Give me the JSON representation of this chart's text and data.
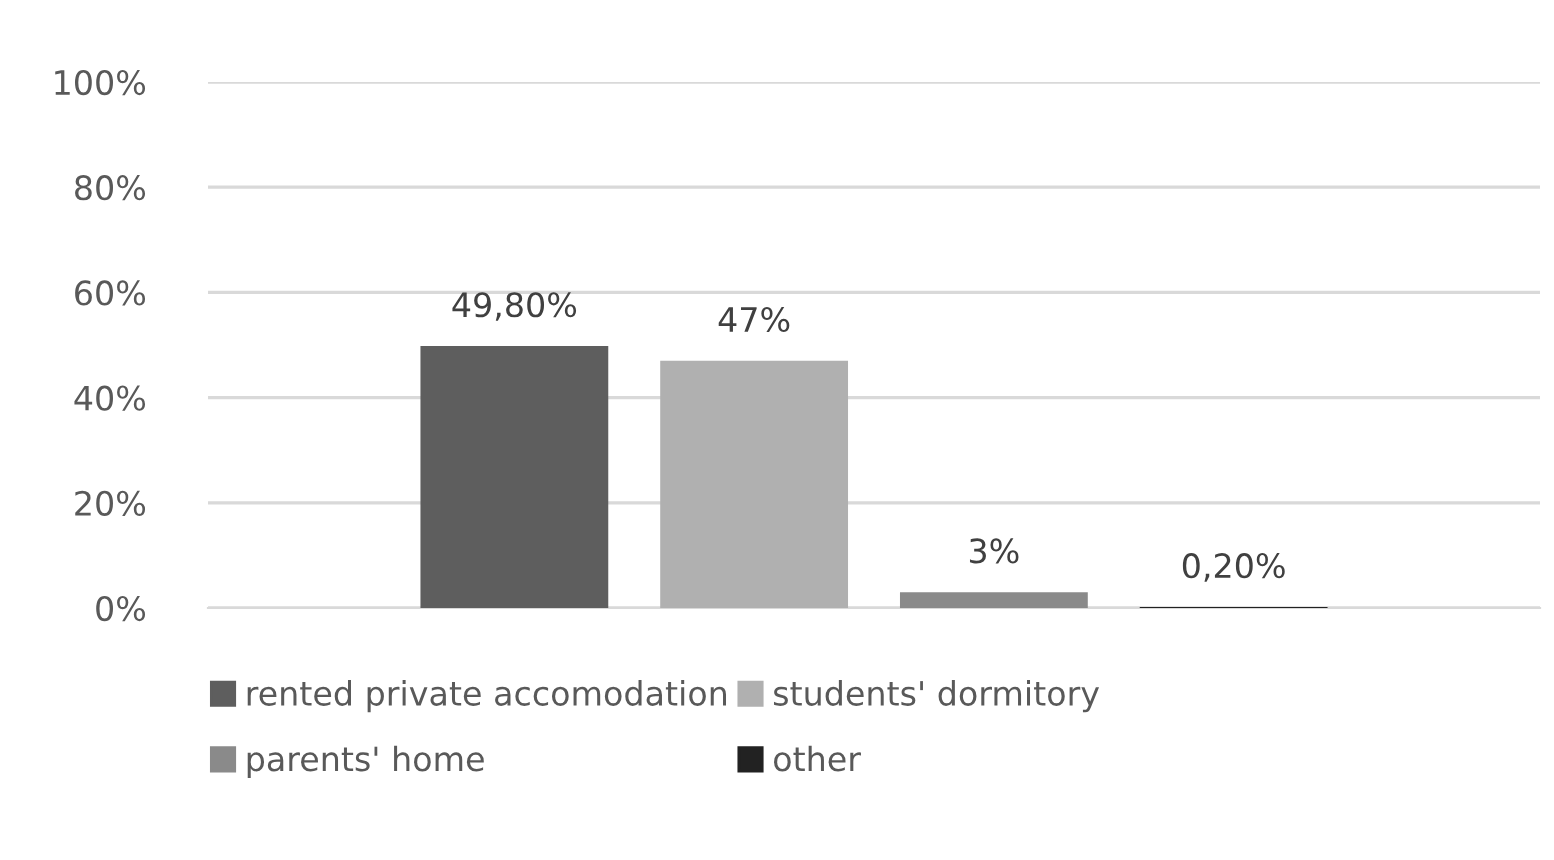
{
  "chart_data": {
    "type": "bar",
    "categories": [
      null
    ],
    "series": [
      {
        "name": "rented private accomodation",
        "color": "#5e5e5e",
        "values": [
          49.8
        ],
        "value_labels": [
          "49,80%"
        ]
      },
      {
        "name": "students' dormitory",
        "color": "#b0b0b0",
        "values": [
          47
        ],
        "value_labels": [
          "47%"
        ]
      },
      {
        "name": "parents' home",
        "color": "#8a8a8a",
        "values": [
          3
        ],
        "value_labels": [
          "3%"
        ]
      },
      {
        "name": "other",
        "color": "#222222",
        "values": [
          0.2
        ],
        "value_labels": [
          "0,20%"
        ]
      }
    ],
    "ylim": [
      0,
      100
    ],
    "yticks": [
      {
        "value": 0,
        "label": "0%"
      },
      {
        "value": 20,
        "label": "20%"
      },
      {
        "value": 40,
        "label": "40%"
      },
      {
        "value": 60,
        "label": "60%"
      },
      {
        "value": 80,
        "label": "80%"
      },
      {
        "value": 100,
        "label": "100%"
      }
    ],
    "grid": "y",
    "legend": "bottom"
  }
}
